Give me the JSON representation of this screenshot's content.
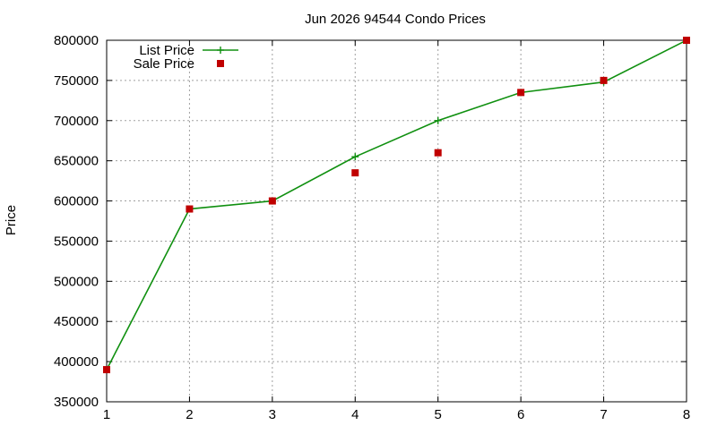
{
  "chart_data": {
    "type": "line",
    "title": "Jun 2026 94544 Condo Prices",
    "xlabel": "",
    "ylabel": "Price",
    "x": [
      1,
      2,
      3,
      4,
      5,
      6,
      7,
      8
    ],
    "xlim": [
      1,
      8
    ],
    "ylim": [
      350000,
      800000
    ],
    "x_ticks": [
      "1",
      "2",
      "3",
      "4",
      "5",
      "6",
      "7",
      "8"
    ],
    "y_ticks": [
      "350000",
      "400000",
      "450000",
      "500000",
      "550000",
      "600000",
      "650000",
      "700000",
      "750000",
      "800000"
    ],
    "grid": true,
    "legend_position": "top-left",
    "series": [
      {
        "name": "List Price",
        "style": "line-with-plus-markers",
        "color": "#109010",
        "values": [
          390000,
          590000,
          600000,
          655000,
          700000,
          735000,
          748000,
          800000
        ]
      },
      {
        "name": "Sale Price",
        "style": "square-markers",
        "color": "#c00000",
        "values": [
          390000,
          590000,
          600000,
          635000,
          660000,
          735000,
          750000,
          800000
        ]
      }
    ]
  }
}
